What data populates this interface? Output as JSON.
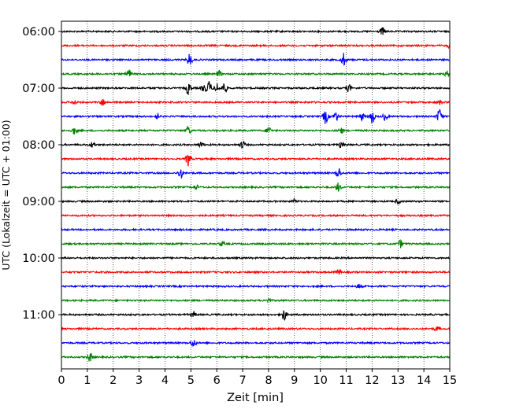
{
  "chart_data": {
    "type": "line",
    "title": "",
    "xlabel": "Zeit  [min]",
    "ylabel": "UTC (Lokalzeit = UTC + 01:00)",
    "xlim": [
      0,
      15
    ],
    "x_ticks": [
      "0",
      "1",
      "2",
      "3",
      "4",
      "5",
      "6",
      "7",
      "8",
      "9",
      "10",
      "11",
      "12",
      "13",
      "14",
      "15"
    ],
    "y_ticks": [
      "06:00",
      "07:00",
      "08:00",
      "09:00",
      "10:00",
      "11:00"
    ],
    "grid": "vertical dotted at each minute",
    "legend": "none",
    "trace_colors": [
      "#000000",
      "#ff0000",
      "#0000ff",
      "#008000"
    ],
    "series": [
      {
        "start": "06:00",
        "color": "#000000",
        "events": [
          {
            "t": 12.4,
            "amp": 0.8
          }
        ]
      },
      {
        "start": "06:15",
        "color": "#ff0000",
        "events": [
          {
            "t": 15.0,
            "amp": 0.5
          }
        ]
      },
      {
        "start": "06:30",
        "color": "#0000ff",
        "events": [
          {
            "t": 4.95,
            "amp": 1.4
          },
          {
            "t": 10.9,
            "amp": 1.4
          }
        ]
      },
      {
        "start": "06:45",
        "color": "#008000",
        "events": [
          {
            "t": 2.6,
            "amp": 1.0
          },
          {
            "t": 6.1,
            "amp": 0.6
          },
          {
            "t": 14.9,
            "amp": 0.6
          }
        ]
      },
      {
        "start": "07:00",
        "color": "#000000",
        "events": [
          {
            "t": 4.9,
            "amp": 1.3
          },
          {
            "t": 5.5,
            "amp": 0.9
          },
          {
            "t": 5.7,
            "amp": 1.4
          },
          {
            "t": 6.0,
            "amp": 1.0
          },
          {
            "t": 6.3,
            "amp": 1.2
          },
          {
            "t": 11.1,
            "amp": 0.8
          }
        ]
      },
      {
        "start": "07:15",
        "color": "#ff0000",
        "events": [
          {
            "t": 0.5,
            "amp": 0.5
          },
          {
            "t": 1.6,
            "amp": 0.8
          },
          {
            "t": 14.6,
            "amp": 0.5
          }
        ]
      },
      {
        "start": "07:30",
        "color": "#0000ff",
        "events": [
          {
            "t": 3.7,
            "amp": 0.5
          },
          {
            "t": 10.2,
            "amp": 1.6
          },
          {
            "t": 10.6,
            "amp": 1.0
          },
          {
            "t": 11.6,
            "amp": 0.8
          },
          {
            "t": 12.0,
            "amp": 1.6
          },
          {
            "t": 12.5,
            "amp": 0.8
          },
          {
            "t": 14.6,
            "amp": 1.6
          }
        ]
      },
      {
        "start": "07:45",
        "color": "#008000",
        "events": [
          {
            "t": 0.5,
            "amp": 0.8
          },
          {
            "t": 4.9,
            "amp": 1.0
          },
          {
            "t": 8.0,
            "amp": 0.9
          },
          {
            "t": 10.8,
            "amp": 0.6
          }
        ]
      },
      {
        "start": "08:00",
        "color": "#000000",
        "events": [
          {
            "t": 1.2,
            "amp": 0.6
          },
          {
            "t": 5.4,
            "amp": 0.6
          },
          {
            "t": 7.0,
            "amp": 0.8
          },
          {
            "t": 10.8,
            "amp": 0.6
          }
        ]
      },
      {
        "start": "08:15",
        "color": "#ff0000",
        "events": [
          {
            "t": 4.9,
            "amp": 1.6
          }
        ]
      },
      {
        "start": "08:30",
        "color": "#0000ff",
        "events": [
          {
            "t": 4.6,
            "amp": 1.2
          },
          {
            "t": 10.7,
            "amp": 1.2
          }
        ]
      },
      {
        "start": "08:45",
        "color": "#008000",
        "events": [
          {
            "t": 5.2,
            "amp": 0.5
          },
          {
            "t": 10.7,
            "amp": 0.9
          }
        ]
      },
      {
        "start": "09:00",
        "color": "#000000",
        "events": [
          {
            "t": 9.0,
            "amp": 0.4
          },
          {
            "t": 13.0,
            "amp": 0.4
          }
        ]
      },
      {
        "start": "09:15",
        "color": "#ff0000",
        "events": []
      },
      {
        "start": "09:30",
        "color": "#0000ff",
        "events": []
      },
      {
        "start": "09:45",
        "color": "#008000",
        "events": [
          {
            "t": 6.2,
            "amp": 0.5
          },
          {
            "t": 13.1,
            "amp": 0.8
          }
        ]
      },
      {
        "start": "10:00",
        "color": "#000000",
        "events": []
      },
      {
        "start": "10:15",
        "color": "#ff0000",
        "events": [
          {
            "t": 10.7,
            "amp": 0.6
          }
        ]
      },
      {
        "start": "10:30",
        "color": "#0000ff",
        "events": [
          {
            "t": 11.5,
            "amp": 0.5
          }
        ]
      },
      {
        "start": "10:45",
        "color": "#008000",
        "events": [
          {
            "t": 8.0,
            "amp": 0.4
          }
        ]
      },
      {
        "start": "11:00",
        "color": "#000000",
        "events": [
          {
            "t": 5.1,
            "amp": 0.6
          },
          {
            "t": 8.6,
            "amp": 1.3
          }
        ]
      },
      {
        "start": "11:15",
        "color": "#ff0000",
        "events": [
          {
            "t": 14.5,
            "amp": 0.5
          }
        ]
      },
      {
        "start": "11:30",
        "color": "#0000ff",
        "events": [
          {
            "t": 5.1,
            "amp": 0.9
          }
        ]
      },
      {
        "start": "11:45",
        "color": "#008000",
        "events": [
          {
            "t": 1.1,
            "amp": 1.0
          }
        ]
      }
    ]
  }
}
